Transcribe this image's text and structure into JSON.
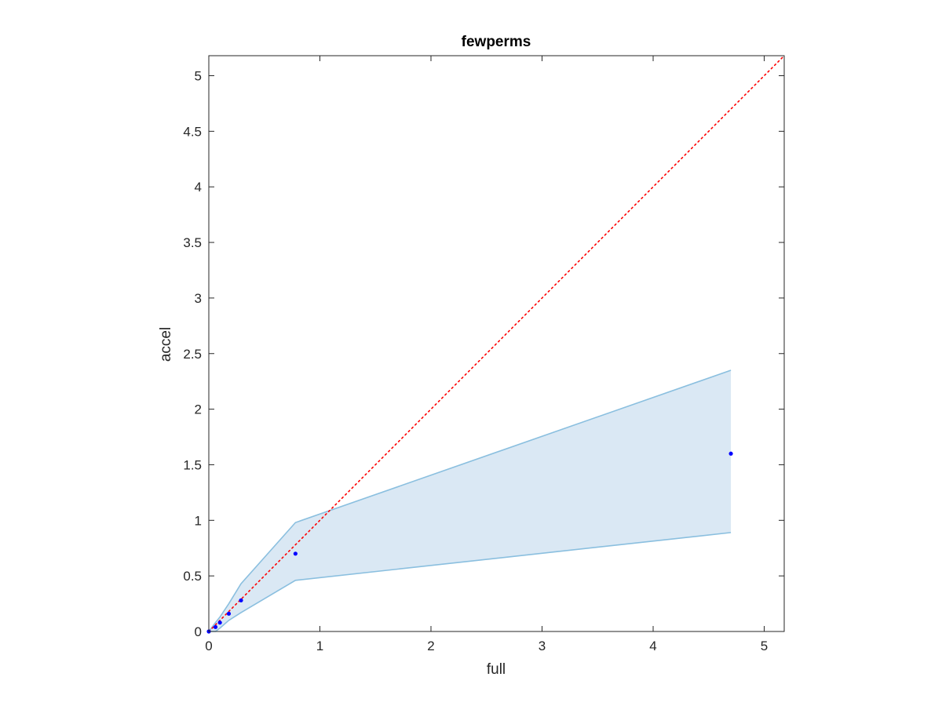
{
  "chart_data": {
    "type": "line",
    "title": "fewperms",
    "xlabel": "full",
    "ylabel": "accel",
    "xlim": [
      0,
      5.18
    ],
    "ylim": [
      0,
      5.18
    ],
    "xticks": [
      0,
      1,
      2,
      3,
      4,
      5
    ],
    "xtick_labels": [
      "0",
      "1",
      "2",
      "3",
      "4",
      "5"
    ],
    "yticks": [
      0,
      0.5,
      1,
      1.5,
      2,
      2.5,
      3,
      3.5,
      4,
      4.5,
      5
    ],
    "ytick_labels": [
      "0",
      "0.5",
      "1",
      "1.5",
      "2",
      "2.5",
      "3",
      "3.5",
      "4",
      "4.5",
      "5"
    ],
    "grid": false,
    "series": [
      {
        "style": "points",
        "color": "#0000ff",
        "x": [
          0.0,
          0.06,
          0.1,
          0.18,
          0.29,
          0.78,
          4.7
        ],
        "y": [
          0.0,
          0.04,
          0.08,
          0.16,
          0.28,
          0.7,
          1.6
        ]
      },
      {
        "style": "band",
        "edge_color": "#8abfdf",
        "fill_color": "#dae8f4",
        "x": [
          0.0,
          0.06,
          0.1,
          0.18,
          0.29,
          0.78,
          4.7
        ],
        "upper": [
          0.0,
          0.08,
          0.13,
          0.25,
          0.43,
          0.98,
          2.35
        ],
        "lower": [
          0.0,
          0.0,
          0.03,
          0.1,
          0.17,
          0.46,
          0.89
        ]
      },
      {
        "style": "reference-line",
        "color": "#ff0000",
        "x": [
          0,
          5.18
        ],
        "y": [
          0,
          5.18
        ]
      }
    ]
  }
}
